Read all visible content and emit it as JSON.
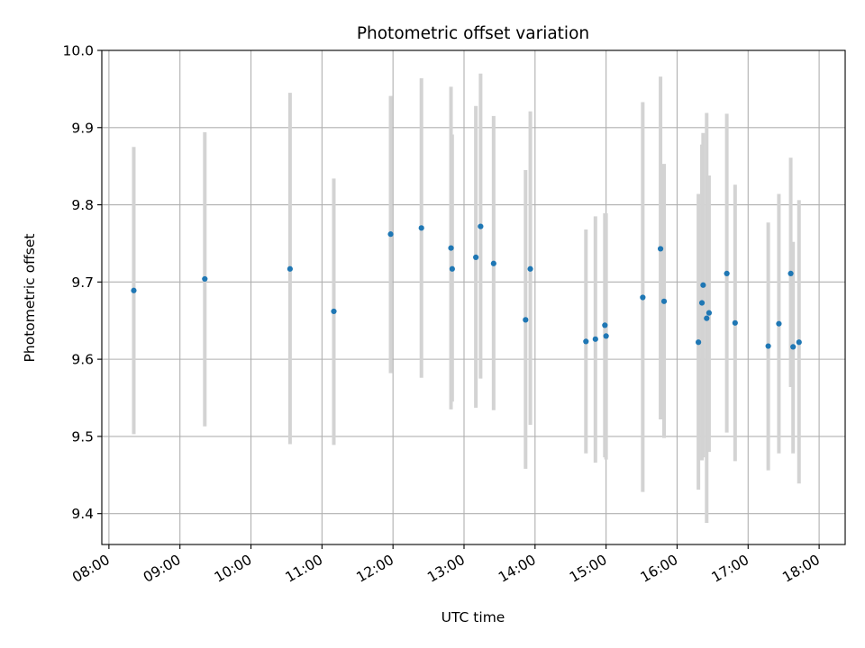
{
  "chart_data": {
    "type": "scatter",
    "title": "Photometric offset variation",
    "xlabel": "UTC time",
    "ylabel": "Photometric offset",
    "xlim": [
      "07:54",
      "18:22"
    ],
    "ylim": [
      9.36,
      10.0
    ],
    "grid": true,
    "x_ticks": [
      "08:00",
      "09:00",
      "10:00",
      "11:00",
      "12:00",
      "13:00",
      "14:00",
      "15:00",
      "16:00",
      "17:00",
      "18:00"
    ],
    "y_ticks": [
      "9.4",
      "9.5",
      "9.6",
      "9.7",
      "9.8",
      "9.9",
      "10.0"
    ],
    "colors": {
      "point": "#1f77b4",
      "errorbar": "#d3d3d3",
      "grid": "#b0b0b0"
    },
    "points": [
      {
        "t": "08:21",
        "y": 9.689,
        "lo": 9.503,
        "hi": 9.875
      },
      {
        "t": "09:21",
        "y": 9.704,
        "lo": 9.513,
        "hi": 9.894
      },
      {
        "t": "10:33",
        "y": 9.717,
        "lo": 9.49,
        "hi": 9.945
      },
      {
        "t": "11:10",
        "y": 9.662,
        "lo": 9.489,
        "hi": 9.834
      },
      {
        "t": "11:58",
        "y": 9.762,
        "lo": 9.582,
        "hi": 9.941
      },
      {
        "t": "12:24",
        "y": 9.77,
        "lo": 9.576,
        "hi": 9.964
      },
      {
        "t": "12:49",
        "y": 9.744,
        "lo": 9.535,
        "hi": 9.953
      },
      {
        "t": "12:50",
        "y": 9.717,
        "lo": 9.545,
        "hi": 9.891
      },
      {
        "t": "13:10",
        "y": 9.732,
        "lo": 9.537,
        "hi": 9.928
      },
      {
        "t": "13:14",
        "y": 9.772,
        "lo": 9.575,
        "hi": 9.97
      },
      {
        "t": "13:25",
        "y": 9.724,
        "lo": 9.534,
        "hi": 9.915
      },
      {
        "t": "13:52",
        "y": 9.651,
        "lo": 9.458,
        "hi": 9.845
      },
      {
        "t": "13:56",
        "y": 9.717,
        "lo": 9.515,
        "hi": 9.921
      },
      {
        "t": "14:43",
        "y": 9.623,
        "lo": 9.478,
        "hi": 9.768
      },
      {
        "t": "14:51",
        "y": 9.626,
        "lo": 9.466,
        "hi": 9.785
      },
      {
        "t": "14:59",
        "y": 9.644,
        "lo": 9.473,
        "hi": 9.789
      },
      {
        "t": "15:00",
        "y": 9.63,
        "lo": 9.47,
        "hi": 9.789
      },
      {
        "t": "15:31",
        "y": 9.68,
        "lo": 9.428,
        "hi": 9.933
      },
      {
        "t": "15:46",
        "y": 9.743,
        "lo": 9.522,
        "hi": 9.966
      },
      {
        "t": "15:49",
        "y": 9.675,
        "lo": 9.498,
        "hi": 9.853
      },
      {
        "t": "16:18",
        "y": 9.622,
        "lo": 9.431,
        "hi": 9.814
      },
      {
        "t": "16:21",
        "y": 9.673,
        "lo": 9.469,
        "hi": 9.878
      },
      {
        "t": "16:22",
        "y": 9.696,
        "lo": 9.473,
        "hi": 9.893
      },
      {
        "t": "16:25",
        "y": 9.653,
        "lo": 9.388,
        "hi": 9.919
      },
      {
        "t": "16:27",
        "y": 9.66,
        "lo": 9.48,
        "hi": 9.838
      },
      {
        "t": "16:42",
        "y": 9.711,
        "lo": 9.505,
        "hi": 9.918
      },
      {
        "t": "16:49",
        "y": 9.647,
        "lo": 9.468,
        "hi": 9.826
      },
      {
        "t": "17:17",
        "y": 9.617,
        "lo": 9.456,
        "hi": 9.777
      },
      {
        "t": "17:26",
        "y": 9.646,
        "lo": 9.478,
        "hi": 9.814
      },
      {
        "t": "17:36",
        "y": 9.711,
        "lo": 9.564,
        "hi": 9.861
      },
      {
        "t": "17:38",
        "y": 9.616,
        "lo": 9.478,
        "hi": 9.752
      },
      {
        "t": "17:43",
        "y": 9.622,
        "lo": 9.439,
        "hi": 9.806
      }
    ]
  }
}
